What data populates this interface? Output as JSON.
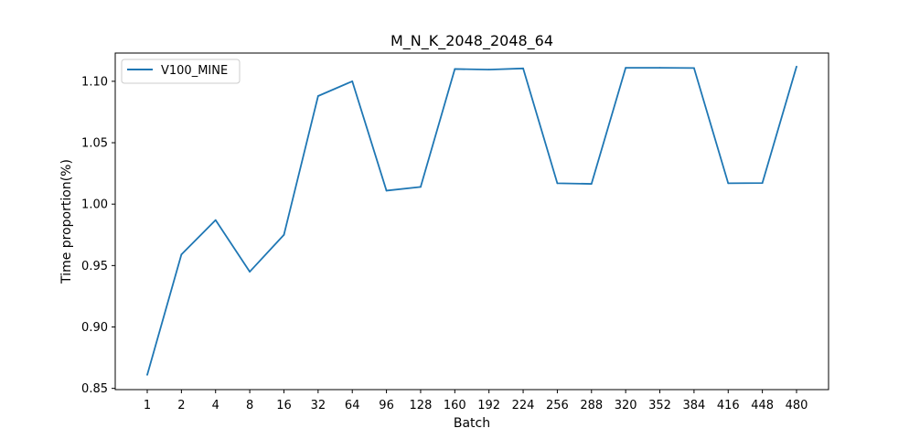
{
  "chart_data": {
    "type": "line",
    "title": "M_N_K_2048_2048_64",
    "xlabel": "Batch",
    "ylabel": "Time proportion(%)",
    "categories": [
      "1",
      "2",
      "4",
      "8",
      "16",
      "32",
      "64",
      "96",
      "128",
      "160",
      "192",
      "224",
      "256",
      "288",
      "320",
      "352",
      "384",
      "416",
      "448",
      "480"
    ],
    "series": [
      {
        "name": "V100_MINE",
        "color": "#1f77b4",
        "values": [
          0.861,
          0.959,
          0.987,
          0.945,
          0.975,
          1.088,
          1.1,
          1.011,
          1.014,
          1.11,
          1.1095,
          1.1105,
          1.017,
          1.0165,
          1.111,
          1.111,
          1.1108,
          1.017,
          1.0172,
          1.112
        ]
      }
    ],
    "ylim": [
      0.849,
      1.123
    ],
    "yticks": [
      "0.85",
      "0.90",
      "0.95",
      "1.00",
      "1.05",
      "1.10"
    ],
    "legend_position": "top-left",
    "grid": false
  }
}
